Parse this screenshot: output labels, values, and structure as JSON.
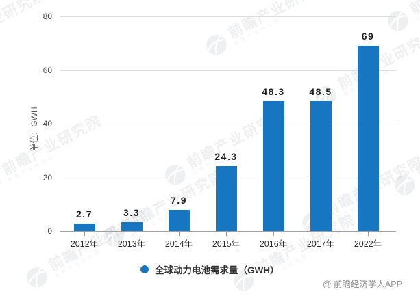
{
  "chart_data": {
    "type": "bar",
    "ylabel": "单位：GWH",
    "categories": [
      "2012年",
      "2013年",
      "2014年",
      "2015年",
      "2016年",
      "2017年",
      "2022年"
    ],
    "values": [
      2.7,
      3.3,
      7.9,
      24.3,
      48.3,
      48.5,
      69
    ],
    "value_labels": [
      "2.7",
      "3.3",
      "7.9",
      "24.3",
      "48.3",
      "48.5",
      "69"
    ],
    "ylim": [
      0,
      80
    ],
    "yticks": [
      0,
      20,
      40,
      60,
      80
    ],
    "grid": true,
    "bar_color": "#1776c1",
    "legend": {
      "label": "全球动力电池需求量（GWH）",
      "marker_color": "#1776c1",
      "position": "bottom-center"
    }
  },
  "watermark": {
    "text": "前瞻产业研究院"
  },
  "attribution": "@ 前瞻经济学人APP"
}
